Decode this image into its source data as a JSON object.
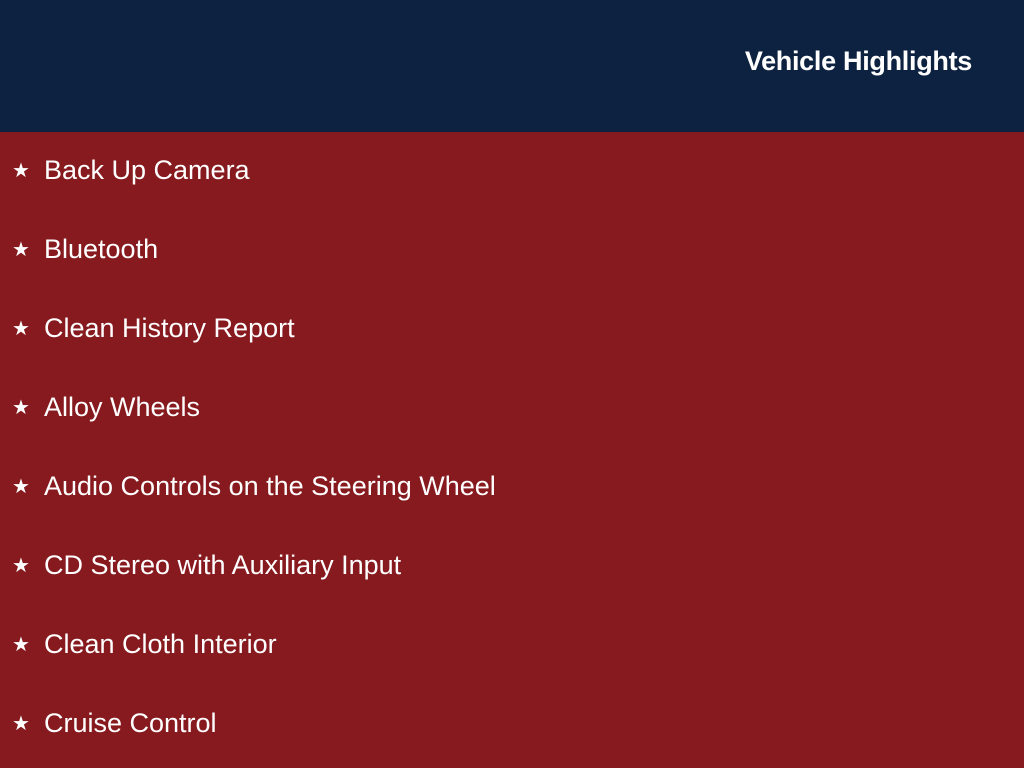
{
  "header": {
    "title": "Vehicle Highlights"
  },
  "colors": {
    "header_bg": "#0d2240",
    "body_bg": "#861a1e",
    "text": "#ffffff"
  },
  "highlights": {
    "icon": "star-icon",
    "bullet": "★",
    "items": [
      "Back Up Camera",
      "Bluetooth",
      "Clean History Report",
      "Alloy Wheels",
      "Audio Controls on the Steering Wheel",
      "CD Stereo with Auxiliary Input",
      "Clean Cloth Interior",
      "Cruise Control"
    ]
  }
}
